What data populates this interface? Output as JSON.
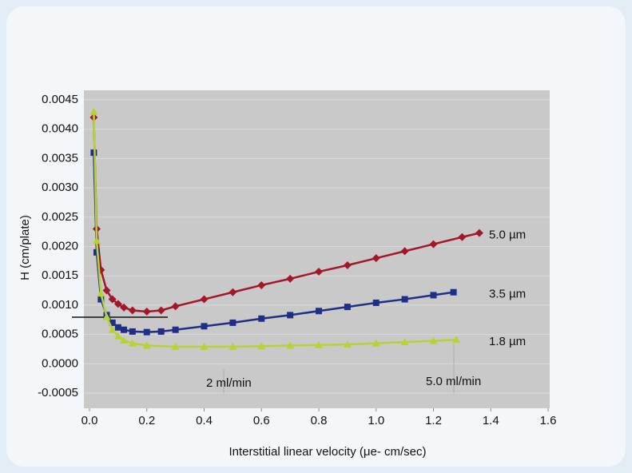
{
  "chart_data": {
    "type": "line",
    "x_label": "Interstitial linear velocity (μe- cm/sec)",
    "y_label": "H (cm/plate)",
    "xlim": [
      0,
      1.6
    ],
    "xticks": [
      {
        "value": 0,
        "label": "0.0"
      },
      0.2,
      0.4,
      0.6,
      0.8,
      {
        "value": 1,
        "label": "1.0"
      },
      1.2,
      1.4,
      1.6
    ],
    "ylim": [
      -0.0005,
      0.0045
    ],
    "yticks": [
      -0.0005,
      {
        "value": 0,
        "label": "0.0000"
      },
      0.0005,
      {
        "value": 0.001,
        "label": "0.0010"
      },
      0.0015,
      {
        "value": 0.002,
        "label": "0.0020"
      },
      0.0025,
      {
        "value": 0.003,
        "label": "0.0030"
      },
      0.0035,
      {
        "value": 0.004,
        "label": "0.0040"
      },
      0.0045
    ],
    "grid": true,
    "series": [
      {
        "name": "5.0 µm",
        "color": "#a3172b",
        "marker": "diamond",
        "x": [
          0.015,
          0.025,
          0.04,
          0.06,
          0.08,
          0.1,
          0.12,
          0.15,
          0.2,
          0.25,
          0.3,
          0.4,
          0.5,
          0.6,
          0.7,
          0.8,
          0.9,
          1.0,
          1.1,
          1.2,
          1.3,
          1.36
        ],
        "values": [
          0.0042,
          0.0023,
          0.0016,
          0.00125,
          0.0011,
          0.00102,
          0.00096,
          0.00091,
          0.00089,
          0.00091,
          0.00098,
          0.0011,
          0.00122,
          0.00134,
          0.00145,
          0.00157,
          0.00168,
          0.0018,
          0.00192,
          0.00204,
          0.00216,
          0.00223
        ]
      },
      {
        "name": "3.5 µm",
        "color": "#1f2f86",
        "marker": "square",
        "x": [
          0.015,
          0.025,
          0.04,
          0.06,
          0.08,
          0.1,
          0.12,
          0.15,
          0.2,
          0.25,
          0.3,
          0.4,
          0.5,
          0.6,
          0.7,
          0.8,
          0.9,
          1.0,
          1.1,
          1.2,
          1.27
        ],
        "values": [
          0.0036,
          0.0019,
          0.0011,
          0.00083,
          0.0007,
          0.00062,
          0.00058,
          0.00055,
          0.00054,
          0.00055,
          0.00058,
          0.00064,
          0.0007,
          0.00077,
          0.00083,
          0.0009,
          0.00097,
          0.00104,
          0.0011,
          0.00117,
          0.00122
        ]
      },
      {
        "name": "1.8 µm",
        "color": "#b5d334",
        "marker": "triangle",
        "x": [
          0.015,
          0.025,
          0.04,
          0.06,
          0.08,
          0.1,
          0.12,
          0.15,
          0.2,
          0.3,
          0.4,
          0.5,
          0.6,
          0.7,
          0.8,
          0.9,
          1.0,
          1.1,
          1.2,
          1.28
        ],
        "values": [
          0.0043,
          0.0021,
          0.0012,
          0.0008,
          0.00058,
          0.00047,
          0.0004,
          0.00035,
          0.00031,
          0.00029,
          0.00029,
          0.00029,
          0.0003,
          0.00031,
          0.00032,
          0.00033,
          0.00035,
          0.00037,
          0.00039,
          0.00041
        ]
      }
    ],
    "annotations": [
      "2 ml/min",
      "5.0 ml/min"
    ]
  }
}
